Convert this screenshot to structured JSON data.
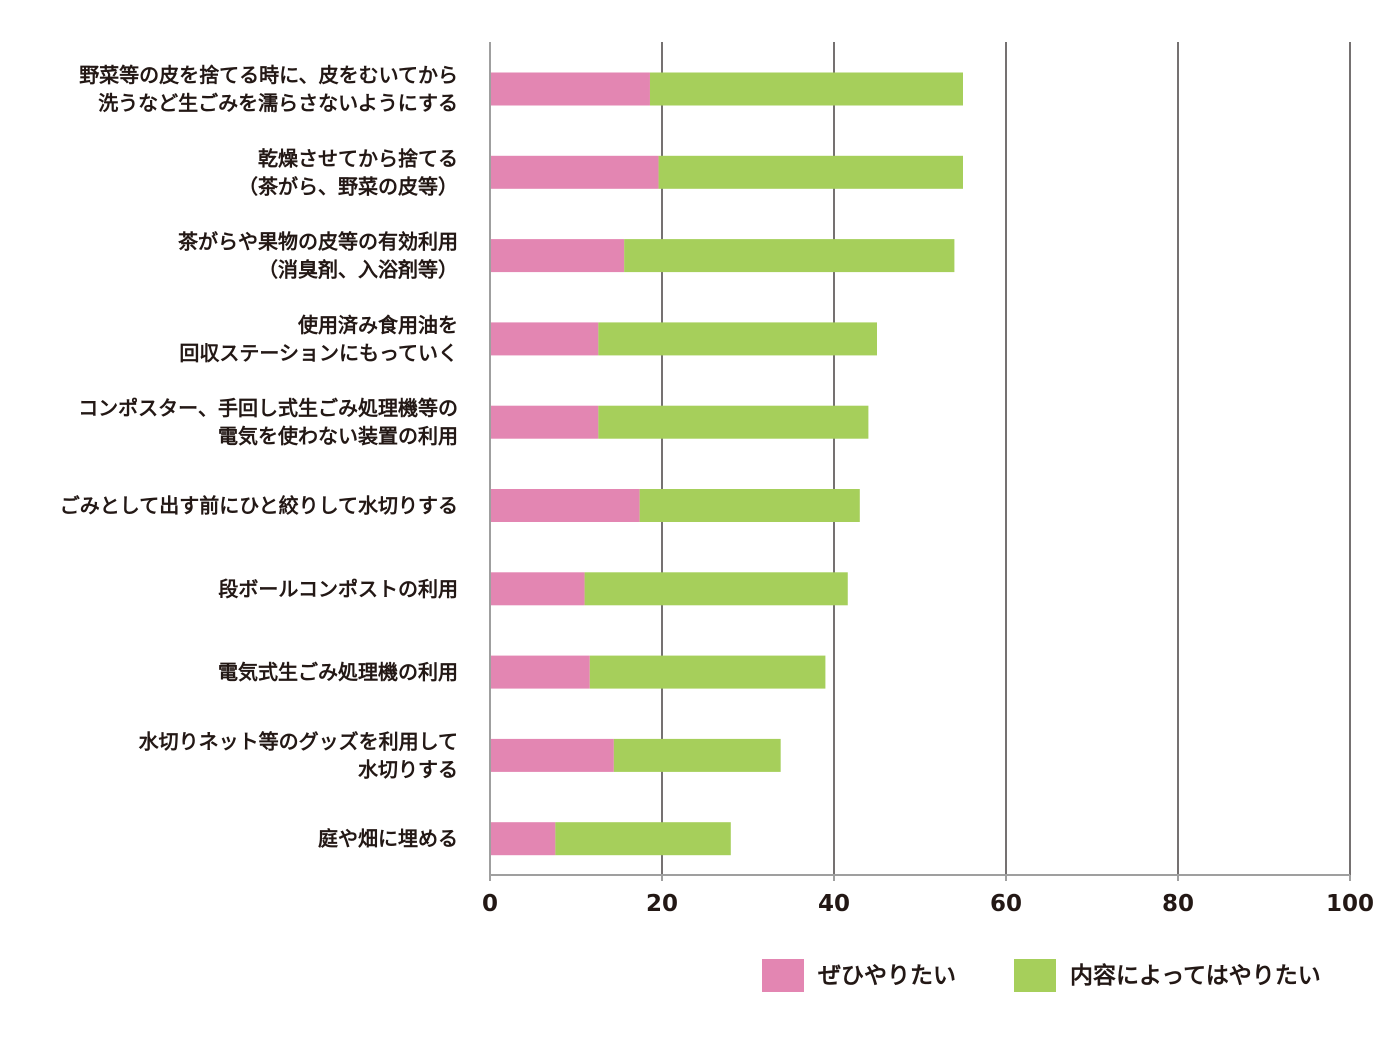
{
  "chart_data": {
    "type": "bar",
    "orientation": "horizontal",
    "stacked": true,
    "categories": [
      [
        "野菜等の皮を捨てる時に、皮をむいてから",
        "洗うなど生ごみを濡らさないようにする"
      ],
      [
        "乾燥させてから捨てる",
        "（茶がら、野菜の皮等）"
      ],
      [
        "茶がらや果物の皮等の有効利用",
        "（消臭剤、入浴剤等）"
      ],
      [
        "使用済み食用油を",
        "回収ステーションにもっていく"
      ],
      [
        "コンポスター、手回し式生ごみ処理機等の",
        "電気を使わない装置の利用"
      ],
      [
        "ごみとして出す前にひと絞りして水切りする"
      ],
      [
        "段ボールコンポストの利用"
      ],
      [
        "電気式生ごみ処理機の利用"
      ],
      [
        "水切りネット等のグッズを利用して",
        "水切りする"
      ],
      [
        "庭や畑に埋める"
      ]
    ],
    "series": [
      {
        "name": "ぜひやりたい",
        "color": "#e386b2",
        "values": [
          18.6,
          19.6,
          15.6,
          12.6,
          12.6,
          17.4,
          11.0,
          11.6,
          14.4,
          7.6
        ]
      },
      {
        "name": "内容によってはやりたい",
        "color": "#a6cf5b",
        "values": [
          36.4,
          35.4,
          38.4,
          32.4,
          31.4,
          25.6,
          30.6,
          27.4,
          19.4,
          20.4
        ]
      }
    ],
    "xlim": [
      0,
      100
    ],
    "xticks": [
      0,
      20,
      40,
      60,
      80,
      100
    ],
    "tick_labels": [
      "0",
      "20",
      "40",
      "60",
      "80",
      "100"
    ],
    "grid": true,
    "gridColor": "#757171",
    "axisColor": "#9f9f9f",
    "legend_position": "bottom-right",
    "title": "",
    "xlabel": "",
    "ylabel": ""
  }
}
